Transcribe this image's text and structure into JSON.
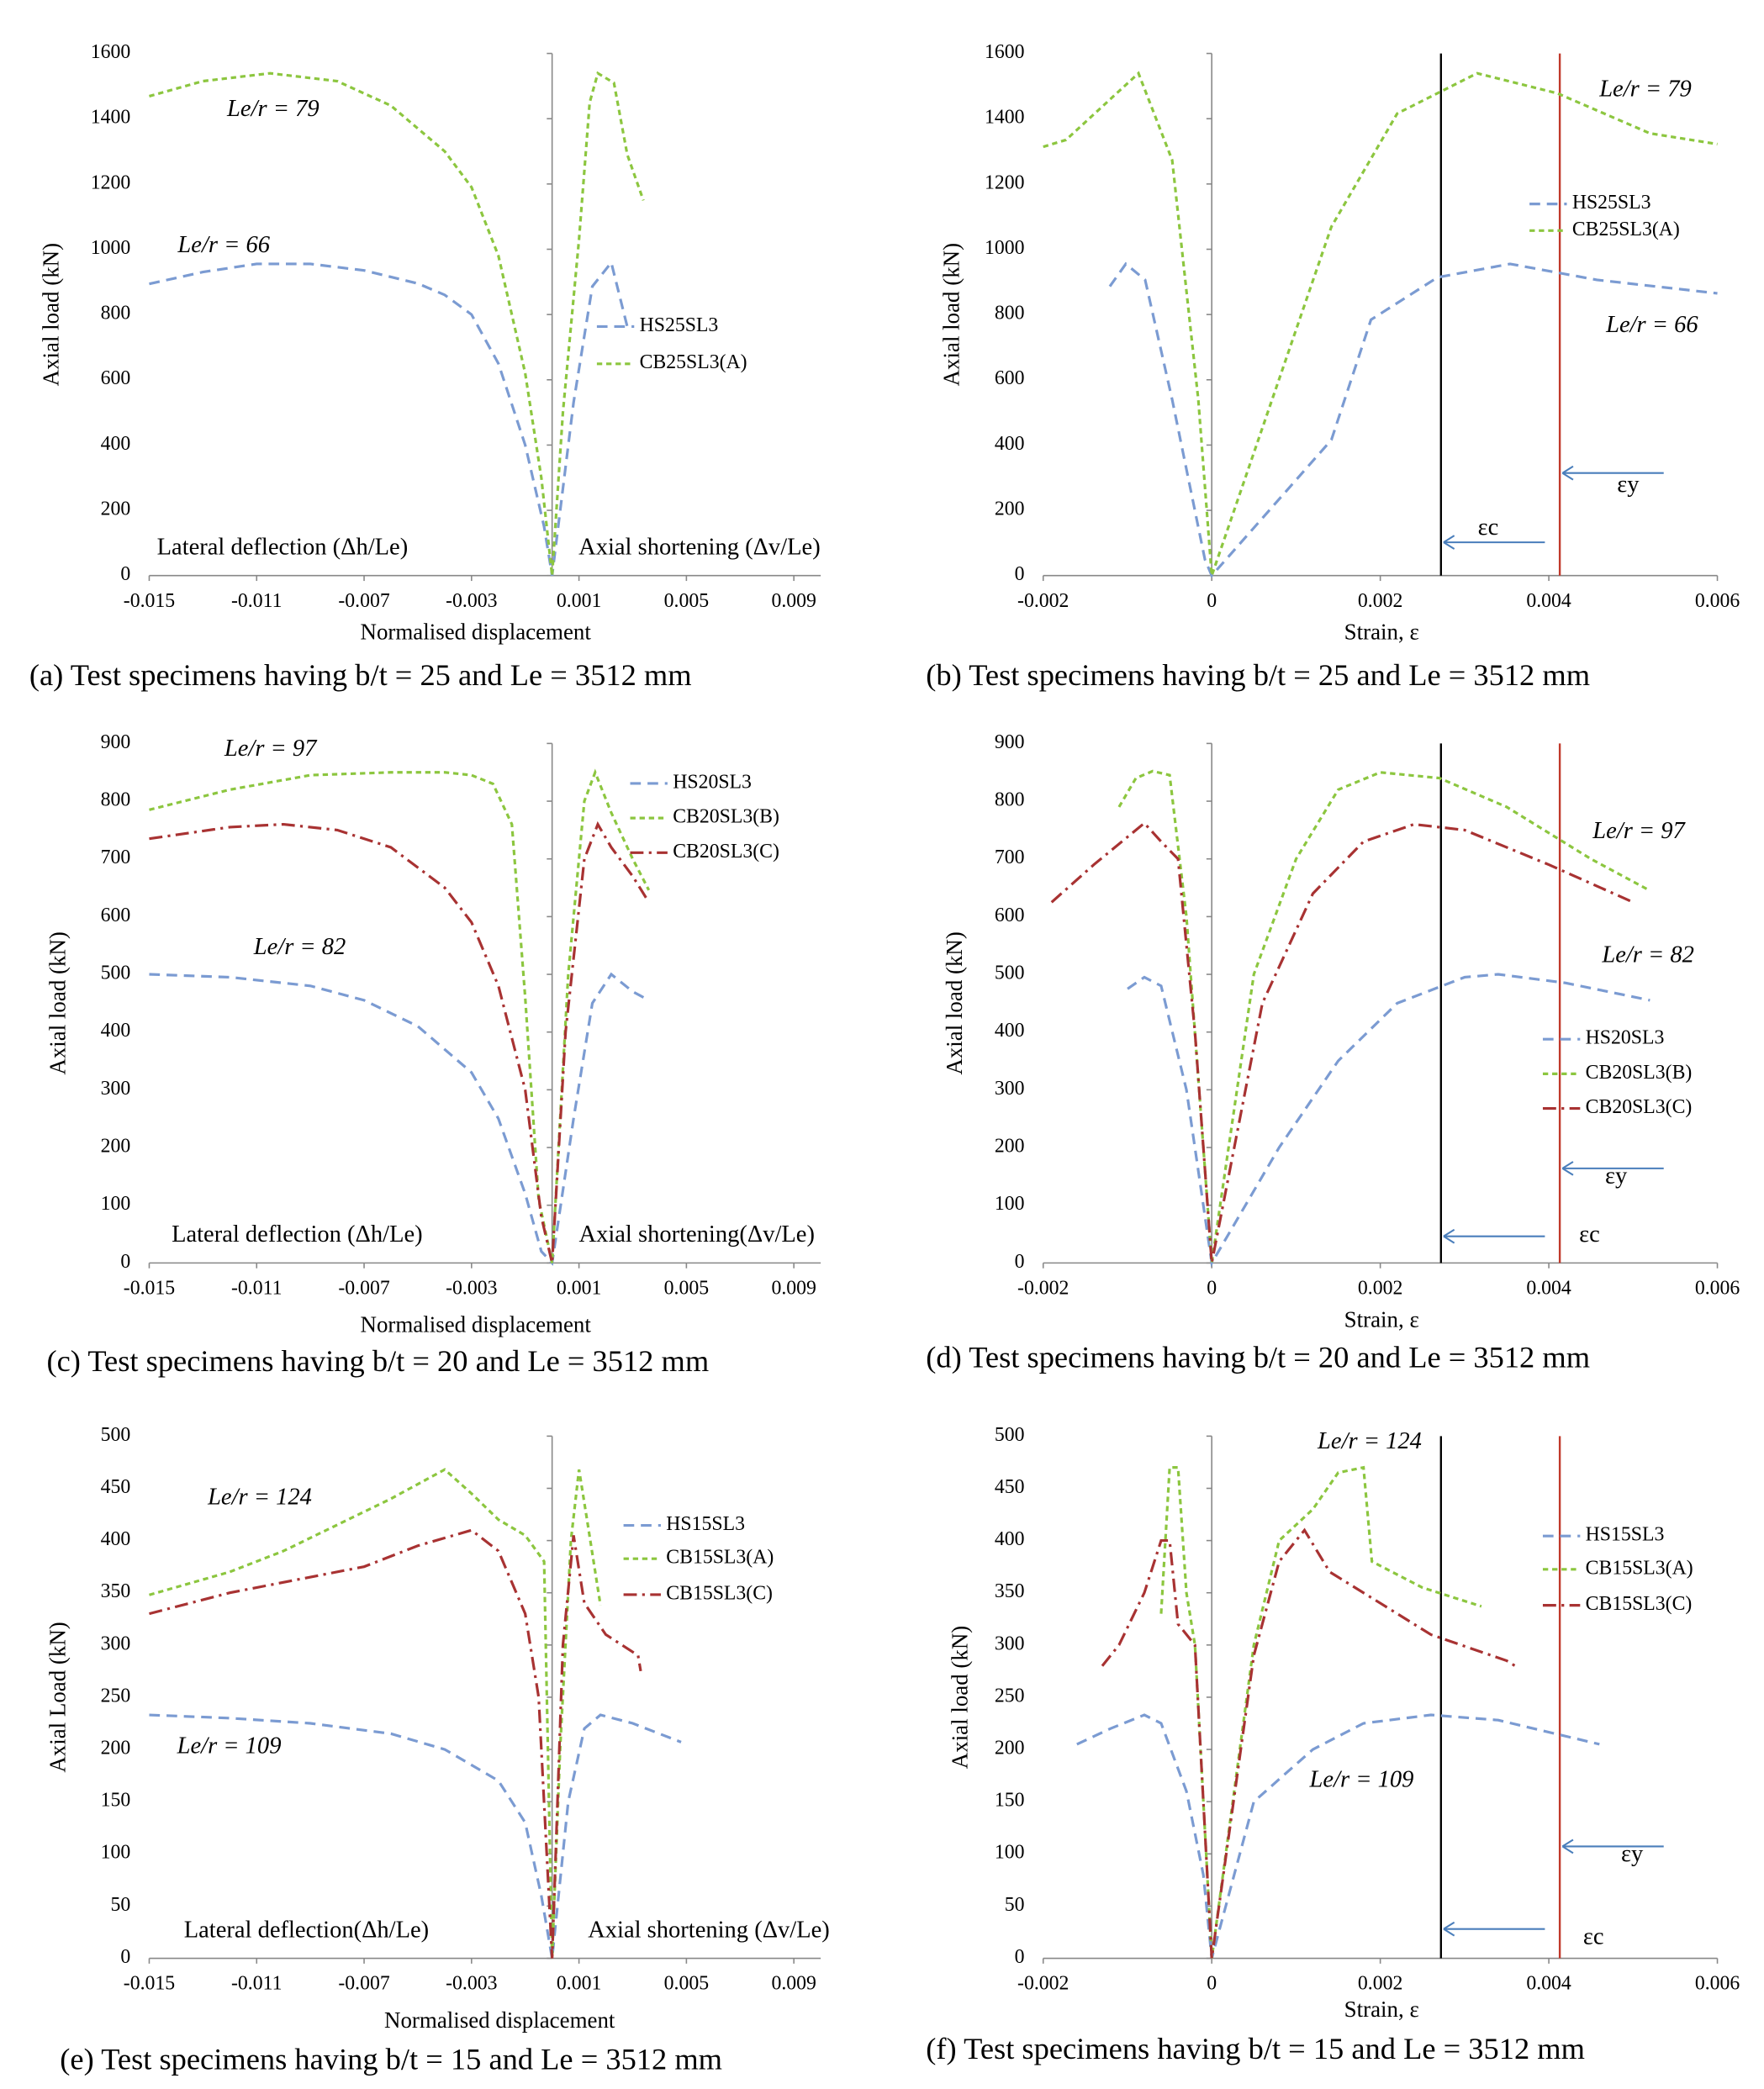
{
  "chart_data": [
    {
      "type": "line",
      "caption": "(a) Test specimens having b/t = 25 and Le = 3512 mm",
      "y_label": "Axial load (kN)",
      "x_label": "Normalised displacement",
      "xlim": [
        -0.015,
        0.01
      ],
      "xticks": [
        -0.015,
        -0.011,
        -0.007,
        -0.003,
        0.001,
        0.005,
        0.009
      ],
      "ylim": [
        0,
        1600
      ],
      "yticks": [
        0,
        200,
        400,
        600,
        800,
        1000,
        1200,
        1400,
        1600
      ],
      "annotations": [
        "Le/r = 79",
        "Le/r = 66",
        "Lateral deflection (Δh/Le)",
        "Axial shortening (Δv/Le)"
      ],
      "series": [
        {
          "name": "HS25SL3",
          "color": "#7b9bd2",
          "style": "dashed",
          "x": [
            -0.015,
            -0.013,
            -0.011,
            -0.009,
            -0.007,
            -0.005,
            -0.004,
            -0.003,
            -0.002,
            -0.001,
            -0.0003,
            0,
            0.0008,
            0.0015,
            0.0022,
            0.0028
          ],
          "values": [
            894,
            930,
            955,
            955,
            935,
            895,
            860,
            800,
            650,
            400,
            150,
            0,
            530,
            886,
            959,
            763
          ]
        },
        {
          "name": "CB25SL3(A)",
          "color": "#8cc63f",
          "style": "dotted",
          "x": [
            -0.015,
            -0.013,
            -0.0105,
            -0.008,
            -0.006,
            -0.004,
            -0.003,
            -0.002,
            -0.001,
            -0.0004,
            0,
            0.0004,
            0.001,
            0.0014,
            0.0017,
            0.0023,
            0.0028,
            0.0034
          ],
          "values": [
            1469,
            1515,
            1539,
            1515,
            1440,
            1300,
            1190,
            980,
            620,
            300,
            0,
            500,
            1030,
            1450,
            1539,
            1510,
            1290,
            1150
          ]
        }
      ]
    },
    {
      "type": "line",
      "caption": "(b) Test specimens having b/t = 25 and Le = 3512 mm",
      "y_label": "Axial load (kN)",
      "x_label": "Strain, ε",
      "xlim": [
        -0.002,
        0.006
      ],
      "xticks": [
        -0.002,
        0,
        0.002,
        0.004,
        0.006
      ],
      "ylim": [
        0,
        1600
      ],
      "yticks": [
        0,
        200,
        400,
        600,
        800,
        1000,
        1200,
        1400,
        1600
      ],
      "vlines": [
        {
          "x": 0.00272,
          "color": "#000000"
        },
        {
          "x": 0.00413,
          "color": "#c0392b"
        }
      ],
      "annotations": [
        "Le/r = 79",
        "Le/r = 66",
        "εc",
        "εy"
      ],
      "series": [
        {
          "name": "HS25SL3",
          "color": "#7b9bd2",
          "style": "dashed",
          "x": [
            -0.00121,
            -0.00102,
            -0.00079,
            -0.00047,
            -8e-05,
            0,
            0.00142,
            0.00189,
            0.00268,
            0.00354,
            0.00457,
            0.006
          ],
          "values": [
            886,
            955,
            906,
            539,
            49,
            0,
            416,
            784,
            914,
            955,
            906,
            865
          ]
        },
        {
          "name": "CB25SL3(A)",
          "color": "#8cc63f",
          "style": "dotted",
          "x": [
            -0.002,
            -0.00173,
            -0.00087,
            -0.00047,
            -0.00016,
            0,
            0.00142,
            0.0022,
            0.00315,
            0.0041,
            0.0052,
            0.006
          ],
          "values": [
            1314,
            1335,
            1539,
            1273,
            539,
            0,
            1069,
            1416,
            1539,
            1478,
            1355,
            1322
          ]
        }
      ]
    },
    {
      "type": "line",
      "caption": "(c) Test specimens having b/t = 20 and Le = 3512 mm",
      "y_label": "Axial load (kN)",
      "x_label": "Normalised displacement",
      "xlim": [
        -0.015,
        0.01
      ],
      "xticks": [
        -0.015,
        -0.011,
        -0.007,
        -0.003,
        0.001,
        0.005,
        0.009
      ],
      "ylim": [
        0,
        900
      ],
      "yticks": [
        0,
        100,
        200,
        300,
        400,
        500,
        600,
        700,
        800,
        900
      ],
      "annotations": [
        "Le/r = 97",
        "Le/r = 82",
        "Lateral deflection (Δh/Le)",
        "Axial shortening(Δv/Le)"
      ],
      "series": [
        {
          "name": "HS20SL3",
          "color": "#7b9bd2",
          "style": "dashed",
          "x": [
            -0.015,
            -0.012,
            -0.009,
            -0.007,
            -0.005,
            -0.003,
            -0.002,
            -0.001,
            -0.0004,
            0,
            0.0008,
            0.0015,
            0.0022,
            0.003,
            0.0036
          ],
          "values": [
            500,
            495,
            480,
            455,
            410,
            330,
            250,
            120,
            20,
            0,
            250,
            450,
            500,
            470,
            455
          ]
        },
        {
          "name": "CB20SL3(B)",
          "color": "#8cc63f",
          "style": "dotted",
          "x": [
            -0.015,
            -0.012,
            -0.009,
            -0.006,
            -0.004,
            -0.003,
            -0.0022,
            -0.0015,
            -0.001,
            -0.0005,
            0,
            0.0006,
            0.0012,
            0.0016,
            0.0022,
            0.003,
            0.0036
          ],
          "values": [
            785,
            820,
            845,
            850,
            850,
            845,
            830,
            760,
            460,
            110,
            0,
            500,
            800,
            850,
            780,
            700,
            646
          ]
        },
        {
          "name": "CB20SL3(C)",
          "color": "#a83232",
          "style": "dashdot",
          "x": [
            -0.015,
            -0.012,
            -0.01,
            -0.008,
            -0.006,
            -0.004,
            -0.003,
            -0.002,
            -0.001,
            -0.0004,
            0,
            0.0005,
            0.0012,
            0.0017,
            0.0022,
            0.003,
            0.0036
          ],
          "values": [
            735,
            755,
            760,
            750,
            720,
            650,
            590,
            480,
            300,
            80,
            0,
            400,
            700,
            760,
            720,
            670,
            625
          ]
        }
      ]
    },
    {
      "type": "line",
      "caption": "(d) Test specimens having b/t = 20 and Le = 3512 mm",
      "y_label": "Axial load (kN)",
      "x_label": "Strain, ε",
      "xlim": [
        -0.002,
        0.006
      ],
      "xticks": [
        -0.002,
        0,
        0.002,
        0.004,
        0.006
      ],
      "ylim": [
        0,
        900
      ],
      "yticks": [
        0,
        100,
        200,
        300,
        400,
        500,
        600,
        700,
        800,
        900
      ],
      "vlines": [
        {
          "x": 0.00272,
          "color": "#000000"
        },
        {
          "x": 0.00413,
          "color": "#c0392b"
        }
      ],
      "annotations": [
        "Le/r = 97",
        "Le/r = 82",
        "εc",
        "εy"
      ],
      "series": [
        {
          "name": "HS20SL3",
          "color": "#7b9bd2",
          "style": "dashed",
          "x": [
            -0.001,
            -0.0008,
            -0.0006,
            -0.0003,
            -0.0001,
            0,
            0.0008,
            0.0015,
            0.0022,
            0.003,
            0.0034,
            0.0042,
            0.0052
          ],
          "values": [
            475,
            495,
            480,
            300,
            100,
            0,
            200,
            350,
            450,
            495,
            500,
            485,
            455
          ]
        },
        {
          "name": "CB20SL3(B)",
          "color": "#8cc63f",
          "style": "dotted",
          "x": [
            -0.0011,
            -0.0009,
            -0.0007,
            -0.0005,
            -0.0003,
            -0.0001,
            0,
            0.0005,
            0.001,
            0.0015,
            0.002,
            0.0027,
            0.0035,
            0.0045,
            0.0052
          ],
          "values": [
            790,
            840,
            852,
            845,
            600,
            200,
            0,
            500,
            700,
            820,
            850,
            840,
            790,
            700,
            645
          ]
        },
        {
          "name": "CB20SL3(C)",
          "color": "#a83232",
          "style": "dashdot",
          "x": [
            -0.0019,
            -0.0014,
            -0.0009,
            -0.0008,
            -0.0006,
            -0.0004,
            -0.0002,
            0,
            0.0006,
            0.0012,
            0.0018,
            0.0024,
            0.003,
            0.004,
            0.005
          ],
          "values": [
            625,
            690,
            750,
            762,
            730,
            700,
            400,
            0,
            450,
            640,
            730,
            760,
            750,
            690,
            625
          ]
        }
      ]
    },
    {
      "type": "line",
      "caption": "(e) Test specimens having b/t = 15 and Le = 3512 mm",
      "y_label": "Axial Load (kN)",
      "x_label": "Normalised displacement",
      "xlim": [
        -0.015,
        0.01
      ],
      "xticks": [
        -0.015,
        -0.011,
        -0.007,
        -0.003,
        0.001,
        0.005,
        0.009
      ],
      "ylim": [
        0,
        500
      ],
      "yticks": [
        0,
        50,
        100,
        150,
        200,
        250,
        300,
        350,
        400,
        450,
        500
      ],
      "annotations": [
        "Le/r = 124",
        "Le/r = 109",
        "Lateral deflection(Δh/Le)",
        "Axial shortening (Δv/Le)"
      ],
      "series": [
        {
          "name": "HS15SL3",
          "color": "#7b9bd2",
          "style": "dashed",
          "x": [
            -0.015,
            -0.012,
            -0.009,
            -0.006,
            -0.004,
            -0.002,
            -0.001,
            -0.0004,
            0,
            0.0006,
            0.0012,
            0.0018,
            0.003,
            0.0048
          ],
          "values": [
            233,
            230,
            225,
            215,
            200,
            170,
            130,
            60,
            0,
            150,
            220,
            233,
            225,
            207
          ]
        },
        {
          "name": "CB15SL3(A)",
          "color": "#8cc63f",
          "style": "dotted",
          "x": [
            -0.015,
            -0.012,
            -0.01,
            -0.008,
            -0.006,
            -0.004,
            -0.003,
            -0.002,
            -0.001,
            -0.0003,
            0,
            0.0003,
            0.0007,
            0.001,
            0.0013,
            0.0018
          ],
          "values": [
            348,
            370,
            390,
            415,
            440,
            468,
            445,
            420,
            405,
            380,
            0,
            200,
            400,
            468,
            420,
            338
          ]
        },
        {
          "name": "CB15SL3(C)",
          "color": "#a83232",
          "style": "dashdot",
          "x": [
            -0.015,
            -0.012,
            -0.009,
            -0.007,
            -0.005,
            -0.003,
            -0.002,
            -0.001,
            -0.0005,
            0,
            0.0004,
            0.0008,
            0.0012,
            0.002,
            0.0032,
            0.0033
          ],
          "values": [
            330,
            350,
            365,
            375,
            395,
            410,
            390,
            330,
            250,
            0,
            300,
            405,
            340,
            310,
            290,
            275
          ]
        }
      ]
    },
    {
      "type": "line",
      "caption": "(f) Test specimens having b/t = 15 and Le = 3512 mm",
      "y_label": "Axial load (kN)",
      "x_label": "Strain, ε",
      "xlim": [
        -0.002,
        0.006
      ],
      "xticks": [
        -0.002,
        0,
        0.002,
        0.004,
        0.006
      ],
      "ylim": [
        0,
        500
      ],
      "yticks": [
        0,
        50,
        100,
        150,
        200,
        250,
        300,
        350,
        400,
        450,
        500
      ],
      "vlines": [
        {
          "x": 0.00272,
          "color": "#000000"
        },
        {
          "x": 0.00413,
          "color": "#c0392b"
        }
      ],
      "annotations": [
        "Le/r = 124",
        "Le/r = 109",
        "εc",
        "εy"
      ],
      "series": [
        {
          "name": "HS15SL3",
          "color": "#7b9bd2",
          "style": "dashed",
          "x": [
            -0.0016,
            -0.0012,
            -0.0008,
            -0.0006,
            -0.0003,
            -0.0001,
            0,
            0.0005,
            0.0012,
            0.0018,
            0.0026,
            0.0034,
            0.0046
          ],
          "values": [
            205,
            220,
            233,
            225,
            160,
            80,
            0,
            150,
            200,
            225,
            233,
            228,
            205
          ]
        },
        {
          "name": "CB15SL3(A)",
          "color": "#8cc63f",
          "style": "dotted",
          "x": [
            -0.0006,
            -0.0005,
            -0.0004,
            -0.0003,
            -0.0002,
            0,
            0.0005,
            0.0008,
            0.0012,
            0.0015,
            0.0018,
            0.0019,
            0.0025,
            0.0032
          ],
          "values": [
            330,
            470,
            470,
            350,
            300,
            0,
            300,
            400,
            430,
            465,
            470,
            380,
            355,
            337
          ]
        },
        {
          "name": "CB15SL3(C)",
          "color": "#a83232",
          "style": "dashdot",
          "x": [
            -0.0013,
            -0.0011,
            -0.0008,
            -0.0006,
            -0.0005,
            -0.0004,
            -0.0002,
            0,
            0.0005,
            0.0008,
            0.0011,
            0.0014,
            0.002,
            0.0026,
            0.0035,
            0.0036
          ],
          "values": [
            280,
            300,
            350,
            400,
            400,
            320,
            300,
            0,
            290,
            380,
            410,
            370,
            340,
            310,
            285,
            280
          ]
        }
      ]
    }
  ]
}
